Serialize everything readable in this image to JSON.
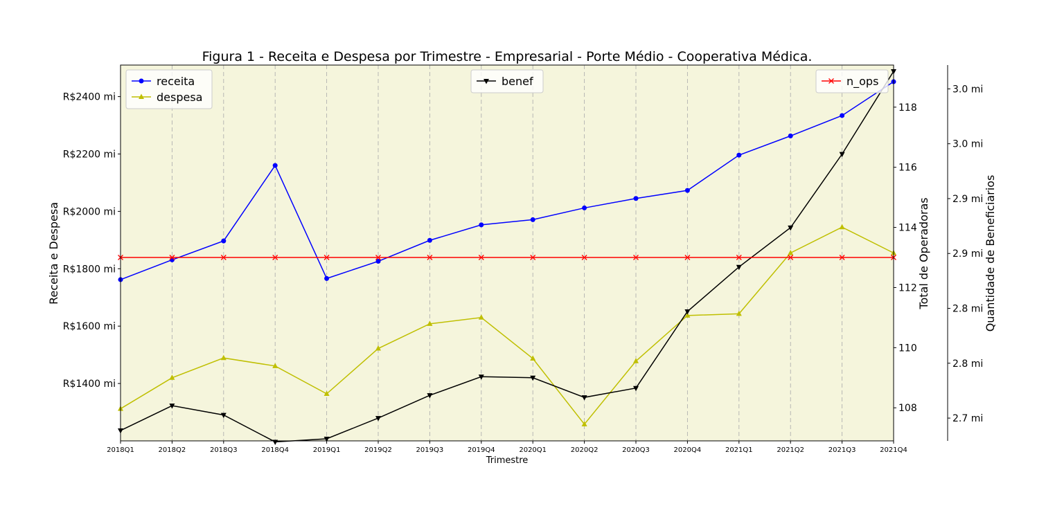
{
  "chart_data": {
    "type": "line",
    "title": "Figura 1 - Receita e Despesa por Trimestre - Empresarial - Porte Médio - Cooperativa Médica.",
    "xlabel": "Trimestre",
    "categories": [
      "2018Q1",
      "2018Q2",
      "2018Q3",
      "2018Q4",
      "2019Q1",
      "2019Q2",
      "2019Q3",
      "2019Q4",
      "2020Q1",
      "2020Q2",
      "2020Q3",
      "2020Q4",
      "2021Q1",
      "2021Q2",
      "2021Q3",
      "2021Q4"
    ],
    "grid": "vertical dashed",
    "background": "#f5f5dc",
    "axes": [
      {
        "id": "left",
        "label": "Receita e Despesa",
        "range": [
          1200,
          2510
        ],
        "ticks": [
          1400,
          1600,
          1800,
          2000,
          2200,
          2400
        ],
        "tick_labels": [
          "R$1400 mi",
          "R$1600 mi",
          "R$1800 mi",
          "R$2000 mi",
          "R$2200 mi",
          "R$2400 mi"
        ]
      },
      {
        "id": "right1",
        "label": "Total de Operadoras",
        "range": [
          106.9,
          119.4
        ],
        "ticks": [
          108,
          110,
          112,
          114,
          116,
          118
        ],
        "tick_labels": [
          "108",
          "110",
          "112",
          "114",
          "116",
          "118"
        ]
      },
      {
        "id": "right2",
        "label": "Quantidade de Beneficiarios",
        "range": [
          2.658,
          3.021
        ],
        "ticks": [
          2.68,
          2.733,
          2.786,
          2.839,
          2.892,
          2.945,
          2.998
        ],
        "tick_labels": [
          "2.7 mi",
          "2.8 mi",
          "2.8 mi",
          "2.9 mi",
          "2.9 mi",
          "3.0 mi",
          "3.0 mi"
        ]
      }
    ],
    "series": [
      {
        "name": "receita",
        "axis": "left",
        "color": "#0000ff",
        "marker": "circle",
        "values": [
          1762,
          1831,
          1897,
          2160,
          1766,
          1826,
          1899,
          1953,
          1971,
          2012,
          2045,
          2073,
          2196,
          2263,
          2334,
          2452
        ]
      },
      {
        "name": "despesa",
        "axis": "left",
        "color": "#bfbf00",
        "marker": "triangle-up",
        "values": [
          1312,
          1420,
          1489,
          1461,
          1364,
          1522,
          1608,
          1630,
          1487,
          1258,
          1478,
          1637,
          1643,
          1855,
          1945,
          1855
        ]
      },
      {
        "name": "benef",
        "axis": "right2",
        "color": "#000000",
        "marker": "triangle-down",
        "values": [
          2.668,
          2.692,
          2.683,
          2.657,
          2.66,
          2.68,
          2.702,
          2.72,
          2.719,
          2.7,
          2.709,
          2.783,
          2.826,
          2.864,
          2.935,
          3.015
        ]
      },
      {
        "name": "n_ops",
        "axis": "right1",
        "color": "#ff0000",
        "marker": "x",
        "values": [
          113,
          113,
          113,
          113,
          113,
          113,
          113,
          113,
          113,
          113,
          113,
          113,
          113,
          113,
          113,
          113
        ]
      }
    ],
    "legends": [
      {
        "placement": "upper-left",
        "items": [
          "receita",
          "despesa"
        ]
      },
      {
        "placement": "upper-center",
        "items": [
          "benef"
        ]
      },
      {
        "placement": "upper-right",
        "items": [
          "n_ops"
        ]
      }
    ]
  }
}
